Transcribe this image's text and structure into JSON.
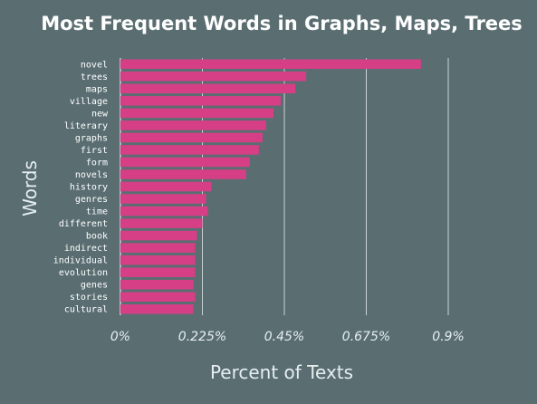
{
  "chart_data": {
    "type": "bar",
    "orientation": "horizontal",
    "title": "Most Frequent Words in Graphs, Maps, Trees",
    "xlabel": "Percent of Texts",
    "ylabel": "Words",
    "categories": [
      "novel",
      "trees",
      "maps",
      "village",
      "new",
      "literary",
      "graphs",
      "first",
      "form",
      "novels",
      "history",
      "genres",
      "time",
      "different",
      "book",
      "indirect",
      "individual",
      "evolution",
      "genes",
      "stories",
      "cultural"
    ],
    "values": [
      0.825,
      0.51,
      0.48,
      0.44,
      0.42,
      0.4,
      0.39,
      0.38,
      0.355,
      0.345,
      0.25,
      0.235,
      0.24,
      0.225,
      0.21,
      0.205,
      0.205,
      0.205,
      0.2,
      0.205,
      0.2
    ],
    "xlim": [
      0,
      0.9
    ],
    "xticks": [
      "0%",
      "0.225%",
      "0.45%",
      "0.675%",
      "0.9%"
    ],
    "xtick_values": [
      0,
      0.225,
      0.45,
      0.675,
      0.9
    ],
    "grid": true,
    "colors": {
      "background": "#5a6e72",
      "bar": "#d63f86",
      "grid": "#c8d2d4"
    }
  }
}
